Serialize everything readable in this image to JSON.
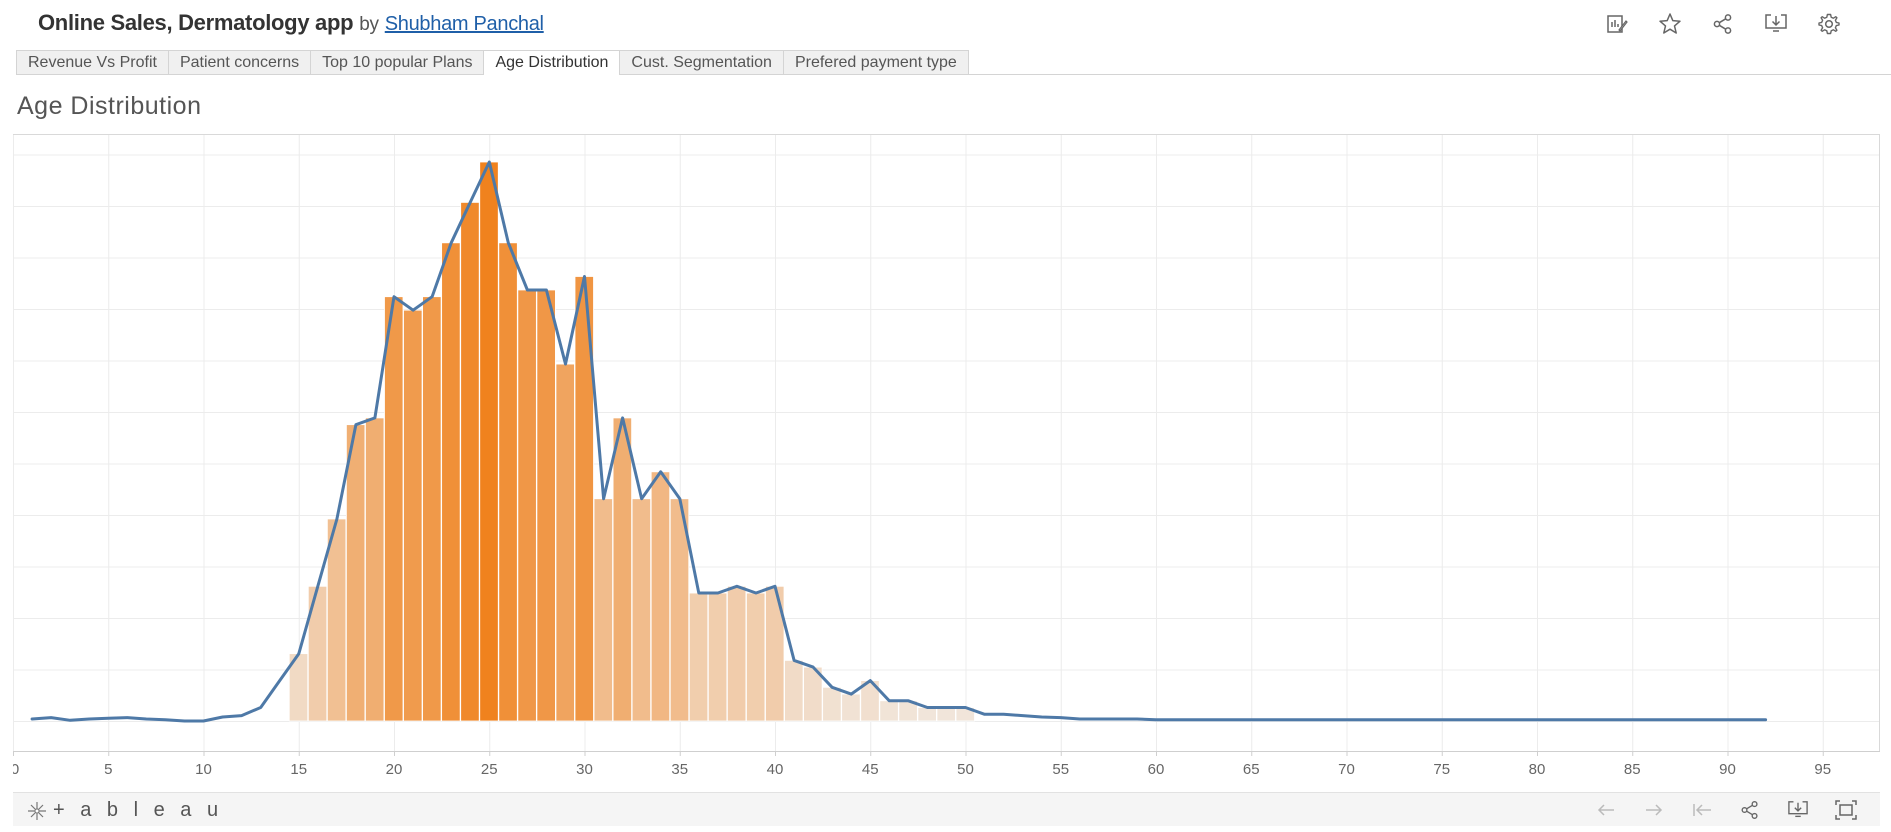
{
  "header": {
    "title": "Online Sales, Dermatology app",
    "by": "by",
    "author": "Shubham Panchal",
    "icons": [
      "edit-icon",
      "star-icon",
      "share-icon",
      "download-icon",
      "settings-icon"
    ]
  },
  "tabs": [
    {
      "label": "Revenue Vs Profit"
    },
    {
      "label": "Patient concerns"
    },
    {
      "label": "Top 10 popular Plans"
    },
    {
      "label": "Age Distribution",
      "active": true
    },
    {
      "label": "Cust. Segmentation"
    },
    {
      "label": "Prefered payment type"
    }
  ],
  "page": {
    "title": "Age Distribution"
  },
  "footer": {
    "logo": "+ a b l e a u",
    "icons": [
      "undo-icon",
      "redo-icon",
      "revert-icon",
      "share-icon",
      "download-icon",
      "fullscreen-icon"
    ]
  },
  "colors": {
    "line": "#4e79a7",
    "bar_dark": "#f28e2b",
    "bar_light": "#f1e9e1",
    "grid": "#ececec"
  },
  "chart_data": {
    "type": "bar",
    "title": "Age Distribution",
    "xlabel": "",
    "ylabel": "",
    "xlim": [
      0,
      97
    ],
    "ylim": [
      0,
      100
    ],
    "grid": true,
    "x_ticks": [
      0,
      5,
      10,
      15,
      20,
      25,
      30,
      35,
      40,
      45,
      50,
      55,
      60,
      65,
      70,
      75,
      80,
      85,
      90,
      95
    ],
    "bars": {
      "x": [
        15,
        16,
        17,
        18,
        19,
        20,
        21,
        22,
        23,
        24,
        25,
        26,
        27,
        28,
        29,
        30,
        31,
        32,
        33,
        34,
        35,
        36,
        37,
        38,
        39,
        40,
        41,
        42,
        43,
        44,
        45,
        46,
        47,
        48,
        49,
        50
      ],
      "values": [
        10,
        20,
        30,
        44,
        45,
        63,
        61,
        63,
        71,
        77,
        83,
        71,
        64,
        64,
        53,
        66,
        33,
        45,
        33,
        37,
        33,
        19,
        19,
        20,
        19,
        20,
        9,
        8,
        5,
        4,
        6,
        3,
        3,
        2,
        2,
        2
      ]
    },
    "series": [
      {
        "x": [
          1,
          2,
          3,
          4,
          5,
          6,
          7,
          8,
          9,
          10,
          11,
          12,
          13,
          14,
          15,
          16,
          17,
          18,
          19,
          20,
          21,
          22,
          23,
          24,
          25,
          26,
          27,
          28,
          29,
          30,
          31,
          32,
          33,
          34,
          35,
          36,
          37,
          38,
          39,
          40,
          41,
          42,
          43,
          44,
          45,
          46,
          47,
          48,
          49,
          50,
          51,
          52,
          53,
          54,
          55,
          56,
          57,
          58,
          59,
          60,
          61,
          62,
          63,
          64,
          65,
          66,
          67,
          68,
          69,
          70,
          72,
          74,
          76,
          78,
          80,
          82,
          84,
          86,
          88,
          90,
          92
        ],
        "values": [
          0.3,
          0.5,
          0.1,
          0.3,
          0.4,
          0.5,
          0.3,
          0.2,
          0,
          0,
          0.6,
          0.8,
          2,
          6,
          10,
          20,
          30,
          44,
          45,
          63,
          61,
          63,
          71,
          77,
          83,
          71,
          64,
          64,
          53,
          66,
          33,
          45,
          33,
          37,
          33,
          19,
          19,
          20,
          19,
          20,
          9,
          8,
          5,
          4,
          6,
          3,
          3,
          2,
          2,
          2,
          1,
          1,
          0.8,
          0.6,
          0.5,
          0.3,
          0.3,
          0.3,
          0.3,
          0.2,
          0.2,
          0.2,
          0.2,
          0.2,
          0.2,
          0.2,
          0.2,
          0.2,
          0.2,
          0.2,
          0.2,
          0.2,
          0.2,
          0.2,
          0.2,
          0.2,
          0.2,
          0.2,
          0.2,
          0.2,
          0.2
        ]
      }
    ]
  }
}
